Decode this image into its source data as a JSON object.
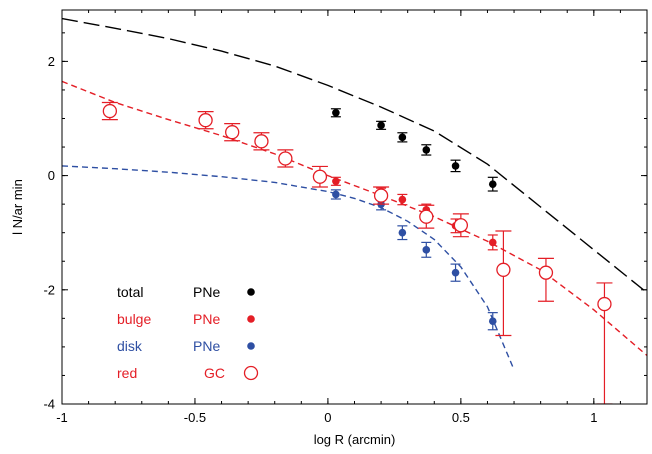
{
  "chart_data": {
    "type": "scatter",
    "title": "",
    "xlabel": "log R (arcmin)",
    "ylabel": "l N/ar min",
    "xlim": [
      -1,
      1.2
    ],
    "ylim": [
      -4,
      2.9
    ],
    "x_ticks": [
      -1,
      -0.5,
      0,
      0.5,
      1
    ],
    "x_tick_labels": [
      "-1",
      "-0.5",
      "0",
      "0.5",
      "1"
    ],
    "y_ticks": [
      -4,
      -2,
      0,
      2
    ],
    "y_tick_labels": [
      "-4",
      "-2",
      "0",
      "2"
    ],
    "grid": false,
    "legend": {
      "placement": "bottom-left",
      "entries": [
        {
          "label": "total",
          "type_label": "PNe",
          "color": "#000000",
          "marker": "filled-circle"
        },
        {
          "label": "bulge",
          "type_label": "PNe",
          "color": "#e41e26",
          "marker": "filled-circle"
        },
        {
          "label": "disk",
          "type_label": "PNe",
          "color": "#2e4fa3",
          "marker": "filled-circle"
        },
        {
          "label": "red",
          "type_label": "GC",
          "color": "#e41e26",
          "marker": "open-circle"
        }
      ]
    },
    "series": [
      {
        "key": "total",
        "marker": "filled-circle",
        "color": "#000000",
        "points": [
          {
            "x": 0.03,
            "y": 1.1,
            "err": 0.07
          },
          {
            "x": 0.2,
            "y": 0.88,
            "err": 0.07
          },
          {
            "x": 0.28,
            "y": 0.67,
            "err": 0.08
          },
          {
            "x": 0.37,
            "y": 0.45,
            "err": 0.09
          },
          {
            "x": 0.48,
            "y": 0.17,
            "err": 0.1
          },
          {
            "x": 0.62,
            "y": -0.15,
            "err": 0.12
          }
        ]
      },
      {
        "key": "bulge",
        "marker": "filled-circle",
        "color": "#e41e26",
        "points": [
          {
            "x": 0.03,
            "y": -0.1,
            "err": 0.07
          },
          {
            "x": 0.2,
            "y": -0.3,
            "err": 0.08
          },
          {
            "x": 0.28,
            "y": -0.42,
            "err": 0.09
          },
          {
            "x": 0.37,
            "y": -0.6,
            "err": 0.1
          },
          {
            "x": 0.48,
            "y": -0.88,
            "err": 0.12
          },
          {
            "x": 0.62,
            "y": -1.17,
            "err": 0.13
          }
        ]
      },
      {
        "key": "disk",
        "marker": "filled-circle",
        "color": "#2e4fa3",
        "points": [
          {
            "x": 0.03,
            "y": -0.33,
            "err": 0.08
          },
          {
            "x": 0.2,
            "y": -0.5,
            "err": 0.1
          },
          {
            "x": 0.28,
            "y": -1.0,
            "err": 0.12
          },
          {
            "x": 0.37,
            "y": -1.3,
            "err": 0.13
          },
          {
            "x": 0.48,
            "y": -1.7,
            "err": 0.15
          },
          {
            "x": 0.62,
            "y": -2.55,
            "err": 0.15
          }
        ]
      },
      {
        "key": "red_gc",
        "marker": "open-circle",
        "color": "#e41e26",
        "points": [
          {
            "x": -0.82,
            "y": 1.13,
            "err_up": 0.15,
            "err_down": 0.15
          },
          {
            "x": -0.46,
            "y": 0.97,
            "err_up": 0.15,
            "err_down": 0.15
          },
          {
            "x": -0.36,
            "y": 0.76,
            "err_up": 0.15,
            "err_down": 0.15
          },
          {
            "x": -0.25,
            "y": 0.6,
            "err_up": 0.15,
            "err_down": 0.15
          },
          {
            "x": -0.16,
            "y": 0.3,
            "err_up": 0.15,
            "err_down": 0.15
          },
          {
            "x": -0.03,
            "y": -0.02,
            "err_up": 0.18,
            "err_down": 0.18
          },
          {
            "x": 0.2,
            "y": -0.35,
            "err_up": 0.15,
            "err_down": 0.15
          },
          {
            "x": 0.37,
            "y": -0.72,
            "err_up": 0.2,
            "err_down": 0.2
          },
          {
            "x": 0.5,
            "y": -0.87,
            "err_up": 0.2,
            "err_down": 0.2
          },
          {
            "x": 0.66,
            "y": -1.65,
            "err_up": 0.68,
            "err_down": 1.15
          },
          {
            "x": 0.82,
            "y": -1.7,
            "err_up": 0.25,
            "err_down": 0.5
          },
          {
            "x": 1.04,
            "y": -2.25,
            "err_up": 0.37,
            "err_down": 1.75
          }
        ]
      }
    ],
    "fits": [
      {
        "key": "total_fit",
        "color": "#000000",
        "dash": "long",
        "x": [
          -1,
          -0.8,
          -0.6,
          -0.4,
          -0.2,
          0,
          0.2,
          0.4,
          0.6,
          0.8,
          1,
          1.2
        ],
        "y": [
          2.75,
          2.58,
          2.4,
          2.18,
          1.92,
          1.58,
          1.2,
          0.78,
          0.2,
          -0.55,
          -1.3,
          -2.05
        ]
      },
      {
        "key": "bulge_fit",
        "color": "#e41e26",
        "dash": "short",
        "x": [
          -1,
          -0.8,
          -0.6,
          -0.4,
          -0.2,
          0,
          0.2,
          0.4,
          0.6,
          0.8,
          1,
          1.2
        ],
        "y": [
          1.65,
          1.28,
          0.98,
          0.7,
          0.38,
          0.0,
          -0.35,
          -0.72,
          -1.15,
          -1.65,
          -2.35,
          -3.15
        ]
      },
      {
        "key": "disk_fit",
        "color": "#2e4fa3",
        "dash": "short",
        "x": [
          -1,
          -0.8,
          -0.6,
          -0.4,
          -0.2,
          0,
          0.1,
          0.2,
          0.3,
          0.4,
          0.5,
          0.6,
          0.7
        ],
        "y": [
          0.17,
          0.12,
          0.06,
          -0.02,
          -0.12,
          -0.28,
          -0.4,
          -0.56,
          -0.8,
          -1.12,
          -1.6,
          -2.3,
          -3.4
        ]
      }
    ]
  }
}
